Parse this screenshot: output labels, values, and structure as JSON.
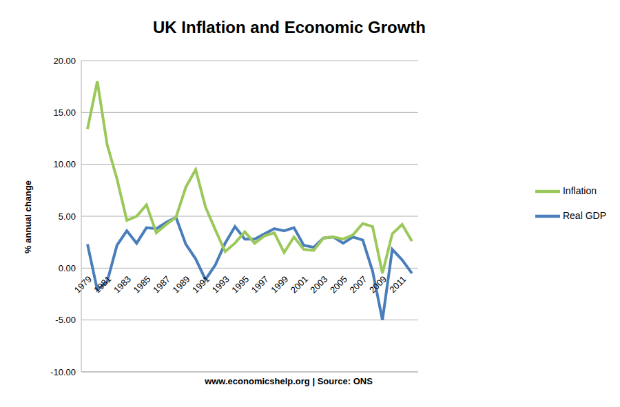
{
  "chart_data": {
    "type": "line",
    "title": "UK Inflation and Economic Growth",
    "y_label": "% annual change",
    "x_label": "www.economicshelp.org | Source: ONS",
    "categories": [
      "1979",
      null,
      "1981",
      null,
      "1983",
      null,
      "1985",
      null,
      "1987",
      null,
      "1989",
      null,
      "1991",
      null,
      "1993",
      null,
      "1995",
      null,
      "1997",
      null,
      "1999",
      null,
      "2001",
      null,
      "2003",
      null,
      "2005",
      null,
      "2007",
      null,
      "2009",
      null,
      "2011",
      null
    ],
    "series": [
      {
        "name": "Real GDP",
        "color": "#4a7ebb",
        "values": [
          2.3,
          -2.1,
          -1.3,
          2.2,
          3.6,
          2.4,
          3.9,
          3.8,
          4.4,
          4.9,
          2.3,
          0.9,
          -1.1,
          0.3,
          2.4,
          4.0,
          2.8,
          2.8,
          3.3,
          3.8,
          3.6,
          3.9,
          2.2,
          2.0,
          2.9,
          3.0,
          2.4,
          3.0,
          2.7,
          -0.3,
          -5.0,
          1.8,
          0.8,
          -0.5
        ]
      },
      {
        "name": "Inflation",
        "color": "#9bc85a",
        "values": [
          13.4,
          18.0,
          11.9,
          8.6,
          4.6,
          5.0,
          6.1,
          3.4,
          4.2,
          4.9,
          7.8,
          9.5,
          5.9,
          3.7,
          1.6,
          2.4,
          3.5,
          2.4,
          3.1,
          3.4,
          1.5,
          3.0,
          1.8,
          1.7,
          2.9,
          3.0,
          2.8,
          3.2,
          4.3,
          4.0,
          -0.5,
          3.3,
          4.2,
          2.6
        ]
      }
    ],
    "ylim": [
      -10,
      20
    ],
    "yticks": [
      {
        "value": -10,
        "label": "-10.00"
      },
      {
        "value": -5,
        "label": "-5.00"
      },
      {
        "value": 0,
        "label": "0.00"
      },
      {
        "value": 5,
        "label": "5.00"
      },
      {
        "value": 10,
        "label": "10.00"
      },
      {
        "value": 15,
        "label": "15.00"
      },
      {
        "value": 20,
        "label": "20.00"
      }
    ],
    "grid": true,
    "legend": "right",
    "marker": "none"
  }
}
